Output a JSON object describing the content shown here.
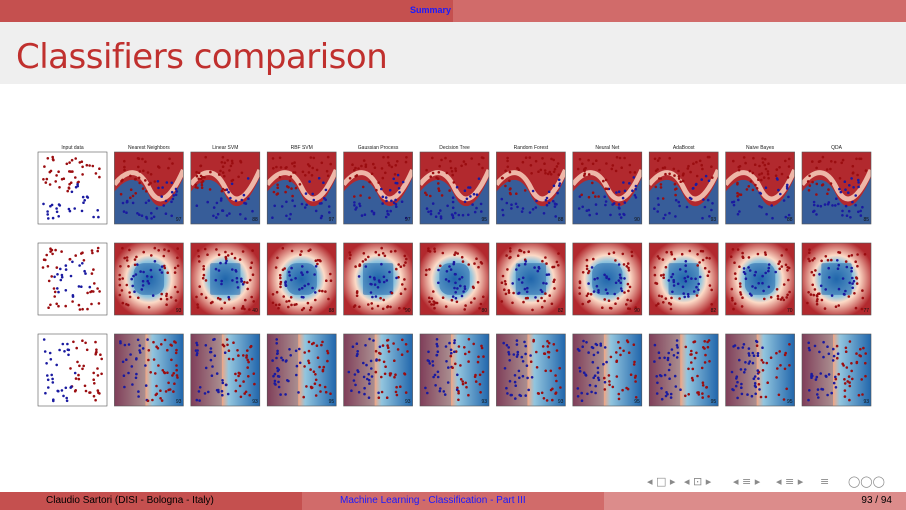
{
  "header": {
    "section": "Summary"
  },
  "slide": {
    "title": "Classifiers comparison"
  },
  "figure": {
    "columns": [
      "Input data",
      "Nearest Neighbors",
      "Linear SVM",
      "RBF SVM",
      "Gaussian Process",
      "Decision Tree",
      "Random Forest",
      "Neural Net",
      "AdaBoost",
      "Naive Bayes",
      "QDA"
    ],
    "scores": [
      [
        "97",
        "88",
        "97",
        "97",
        "95",
        "88",
        "90",
        "93",
        "88",
        "85"
      ],
      [
        "93",
        "40",
        "88",
        "90",
        "80",
        "82",
        "90",
        "82",
        "70",
        "77"
      ],
      [
        "93",
        "93",
        "95",
        "93",
        "93",
        "93",
        "95",
        "95",
        "95",
        "93"
      ]
    ],
    "colors": {
      "red": "#b2292e",
      "blue": "#2166ac",
      "light": "#f7f7f7"
    }
  },
  "nav": {
    "symbols": [
      "◂ □ ▸",
      "◂ ⊡ ▸",
      "◂ ≡ ▸",
      "◂ ≡ ▸",
      "≡",
      "◯◯◯"
    ]
  },
  "footer": {
    "author": "Claudio Sartori  (DISI - Bologna - Italy)",
    "course": "Machine Learning - Classification - Part III",
    "page": "93 / 94"
  }
}
